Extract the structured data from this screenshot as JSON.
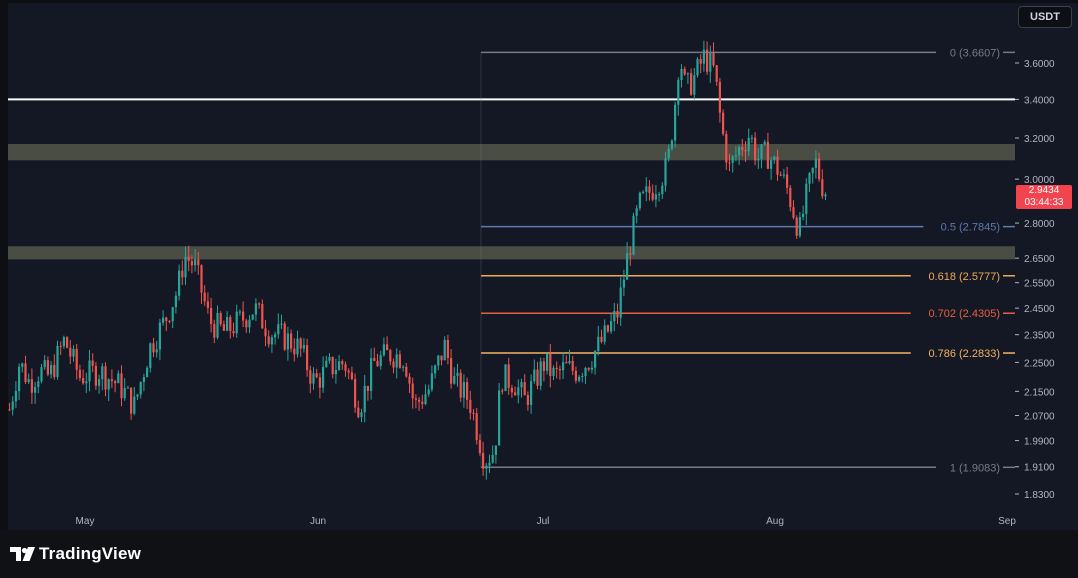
{
  "app": {
    "brand": "TradingView",
    "currency": "USDT"
  },
  "last_price": {
    "value": "2.9434",
    "countdown": "03:44:33",
    "color": "#f2444f"
  },
  "colors": {
    "up": "#26a69a",
    "down": "#ef5350",
    "zone": "#5c5f4e",
    "resistance": "#ffffff"
  },
  "chart_data": {
    "type": "candlestick",
    "x_ticks": [
      "May",
      "Jun",
      "Jul",
      "Aug",
      "Sep"
    ],
    "y_ticks": [
      "3.6000",
      "3.4000",
      "3.2000",
      "3.0000",
      "2.8000",
      "2.6500",
      "2.5500",
      "2.4500",
      "2.3500",
      "2.2500",
      "2.1500",
      "2.0700",
      "1.9900",
      "1.9100",
      "1.8300"
    ],
    "y_scale": "log",
    "ylim": [
      1.8,
      3.9
    ],
    "resistance_line": 3.4,
    "zones": [
      {
        "low": 3.09,
        "high": 3.17
      },
      {
        "low": 2.645,
        "high": 2.7
      }
    ],
    "fib_levels": [
      {
        "label": "0 (3.6607)",
        "value": 3.6607,
        "color": "#787b86"
      },
      {
        "label": "0.5 (2.7845)",
        "value": 2.7845,
        "color": "#5b7bb0"
      },
      {
        "label": "0.618 (2.5777)",
        "value": 2.5777,
        "color": "#f0a955"
      },
      {
        "label": "0.702 (2.4305)",
        "value": 2.4305,
        "color": "#e7603e"
      },
      {
        "label": "0.786 (2.2833)",
        "value": 2.2833,
        "color": "#f2b35e"
      },
      {
        "label": "1 (1.9083)",
        "value": 1.9083,
        "color": "#787b86"
      }
    ],
    "price_path": [
      [
        0,
        2.09
      ],
      [
        10,
        2.25
      ],
      [
        20,
        2.18
      ],
      [
        30,
        2.22
      ],
      [
        40,
        2.2
      ],
      [
        55,
        2.33
      ],
      [
        70,
        2.2
      ],
      [
        90,
        2.22
      ],
      [
        110,
        2.17
      ],
      [
        125,
        2.1
      ],
      [
        140,
        2.3
      ],
      [
        155,
        2.4
      ],
      [
        168,
        2.52
      ],
      [
        175,
        2.66
      ],
      [
        185,
        2.62
      ],
      [
        200,
        2.4
      ],
      [
        215,
        2.36
      ],
      [
        230,
        2.4
      ],
      [
        245,
        2.45
      ],
      [
        260,
        2.36
      ],
      [
        275,
        2.34
      ],
      [
        290,
        2.3
      ],
      [
        305,
        2.18
      ],
      [
        320,
        2.23
      ],
      [
        335,
        2.25
      ],
      [
        350,
        2.1
      ],
      [
        365,
        2.25
      ],
      [
        380,
        2.28
      ],
      [
        395,
        2.27
      ],
      [
        405,
        2.1
      ],
      [
        420,
        2.16
      ],
      [
        435,
        2.31
      ],
      [
        445,
        2.18
      ],
      [
        460,
        2.12
      ],
      [
        475,
        1.93
      ],
      [
        485,
        1.96
      ],
      [
        492,
        2.2
      ],
      [
        505,
        2.18
      ],
      [
        515,
        2.12
      ],
      [
        525,
        2.18
      ],
      [
        535,
        2.25
      ],
      [
        545,
        2.2
      ],
      [
        555,
        2.23
      ],
      [
        568,
        2.22
      ],
      [
        580,
        2.26
      ],
      [
        595,
        2.34
      ],
      [
        608,
        2.43
      ],
      [
        620,
        2.7
      ],
      [
        630,
        2.88
      ],
      [
        640,
        2.94
      ],
      [
        650,
        3.0
      ],
      [
        658,
        3.06
      ],
      [
        665,
        3.35
      ],
      [
        670,
        3.66
      ],
      [
        676,
        3.45
      ],
      [
        685,
        3.52
      ],
      [
        695,
        3.64
      ],
      [
        705,
        3.55
      ],
      [
        712,
        3.25
      ],
      [
        720,
        3.05
      ],
      [
        730,
        3.15
      ],
      [
        740,
        3.22
      ],
      [
        748,
        3.1
      ],
      [
        758,
        3.12
      ],
      [
        768,
        3.05
      ],
      [
        778,
        2.95
      ],
      [
        790,
        2.76
      ],
      [
        796,
        2.9
      ],
      [
        806,
        3.08
      ],
      [
        812,
        2.98
      ],
      [
        817,
        2.94
      ]
    ]
  }
}
